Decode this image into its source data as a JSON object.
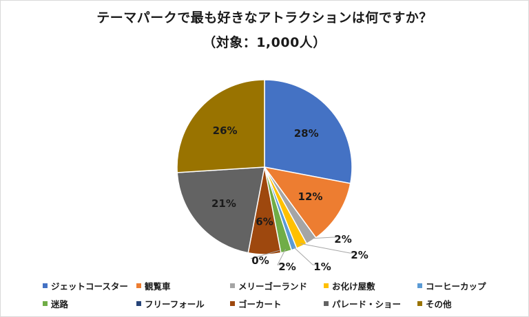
{
  "chart_data": {
    "type": "pie",
    "title": "テーマパークで最も好きなアトラクションは何ですか？",
    "subtitle": "（対象：1,000人）",
    "slices": [
      {
        "name": "ジェットコースター",
        "value": 28,
        "label": "28%",
        "color": "#4472C4"
      },
      {
        "name": "観覧車",
        "value": 12,
        "label": "12%",
        "color": "#ED7D31"
      },
      {
        "name": "メリーゴーランド",
        "value": 2,
        "label": "2%",
        "color": "#A5A5A5"
      },
      {
        "name": "お化け屋敷",
        "value": 2,
        "label": "2%",
        "color": "#FFC000"
      },
      {
        "name": "コーヒーカップ",
        "value": 1,
        "label": "1%",
        "color": "#5B9BD5"
      },
      {
        "name": "迷路",
        "value": 2,
        "label": "2%",
        "color": "#70AD47"
      },
      {
        "name": "フリーフォール",
        "value": 0,
        "label": "0%",
        "color": "#264478"
      },
      {
        "name": "ゴーカート",
        "value": 6,
        "label": "6%",
        "color": "#9E480E"
      },
      {
        "name": "パレード・ショー",
        "value": 21,
        "label": "21%",
        "color": "#636363"
      },
      {
        "name": "その他",
        "value": 26,
        "label": "26%",
        "color": "#997300"
      }
    ],
    "legend_position": "bottom"
  }
}
